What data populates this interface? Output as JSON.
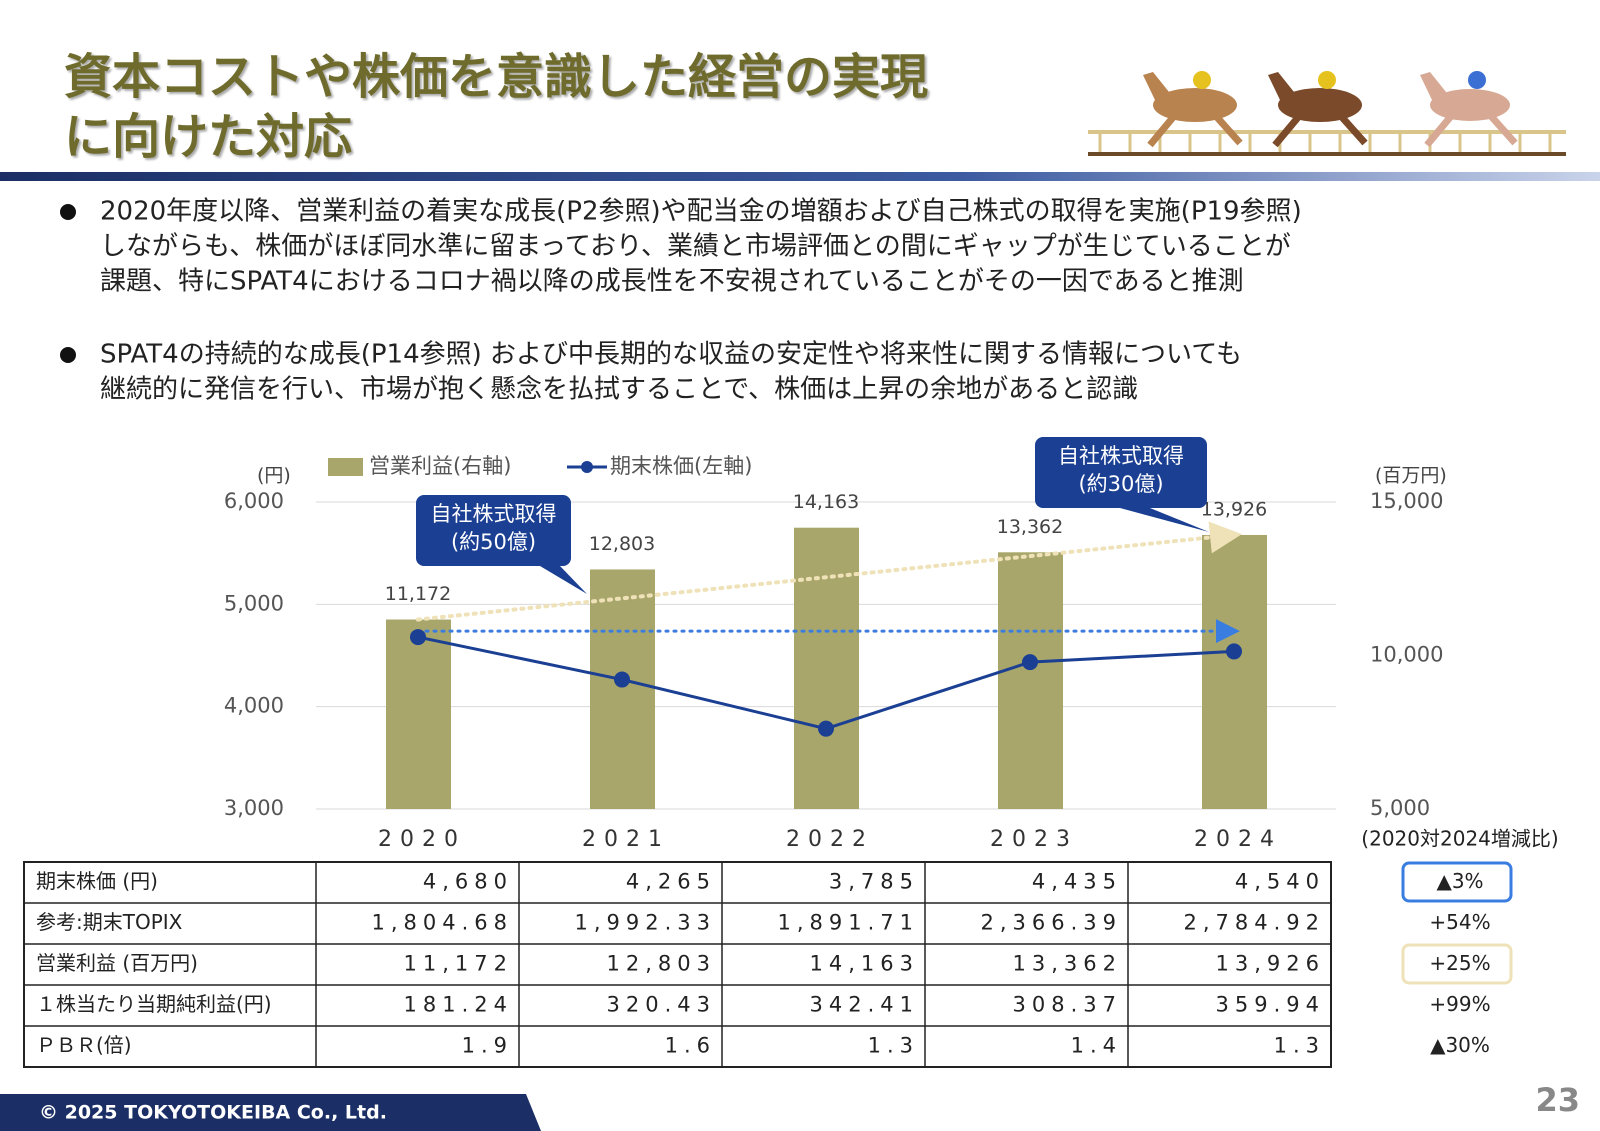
{
  "header": {
    "title_lines": [
      "資本コストや株価を意識した経営の実現",
      "に向けた対応"
    ]
  },
  "bullets": [
    [
      "2020年度以降、営業利益の着実な成長(P2参照)や配当金の増額および自己株式の取得を実施(P19参照)",
      "しながらも、株価がほぼ同水準に留まっており、業績と市場評価との間にギャップが生じていることが",
      "課題、特にSPAT4におけるコロナ禍以降の成長性を不安視されていることがその一因であると推測"
    ],
    [
      "SPAT4の持続的な成長(P14参照) および中長期的な収益の安定性や将来性に関する情報についても",
      "継続的に発信を行い、市場が抱く懸念を払拭することで、株価は上昇の余地があると認識"
    ]
  ],
  "chart_data": {
    "type": "combo",
    "categories": [
      "2020",
      "2021",
      "2022",
      "2023",
      "2024"
    ],
    "series": [
      {
        "name": "営業利益(右軸)",
        "color": "#a9a66b",
        "type": "bar",
        "axis": "y2",
        "values": [
          11172,
          12803,
          14163,
          13362,
          13926
        ],
        "value_labels": [
          "11,172",
          "12,803",
          "14,163",
          "13,362",
          "13,926"
        ]
      },
      {
        "name": "期末株価(左軸)",
        "color": "#1a3f93",
        "type": "line",
        "values": [
          4680,
          4265,
          3785,
          4435,
          4540
        ]
      }
    ],
    "ylim": [
      3000,
      6000
    ],
    "yticks": [
      {
        "value": 3000,
        "label": "3,000"
      },
      {
        "value": 4000,
        "label": "4,000"
      },
      {
        "value": 5000,
        "label": "5,000"
      },
      {
        "value": 6000,
        "label": "6,000"
      }
    ],
    "y2lim": [
      5000,
      15000
    ],
    "y2ticks": [
      {
        "value": 5000,
        "label": "5,000"
      },
      {
        "value": 10000,
        "label": "10,000"
      },
      {
        "value": 15000,
        "label": "15,000"
      }
    ],
    "ylabel": "(円)",
    "y2label": "(百万円)",
    "grid": true,
    "annotations": [
      {
        "lines": [
          "自社株式取得",
          "(約50億)"
        ]
      },
      {
        "lines": [
          "自社株式取得",
          "(約30億)"
        ]
      }
    ]
  },
  "table": {
    "change_header": "(2020対2024増減比)",
    "rows": [
      {
        "label": "期末株価 (円)",
        "cells": [
          "4,680",
          "4,265",
          "3,785",
          "4,435",
          "4,540"
        ],
        "change": "▲3%"
      },
      {
        "label": "参考:期末TOPIX",
        "cells": [
          "1,804.68",
          "1,992.33",
          "1,891.71",
          "2,366.39",
          "2,784.92"
        ],
        "change": "+54%"
      },
      {
        "label": "営業利益 (百万円)",
        "cells": [
          "11,172",
          "12,803",
          "14,163",
          "13,362",
          "13,926"
        ],
        "change": "+25%"
      },
      {
        "label": "１株当たり当期純利益(円)",
        "cells": [
          "181.24",
          "320.43",
          "342.41",
          "308.37",
          "359.94"
        ],
        "change": "+99%"
      },
      {
        "label": "ＰＢＲ(倍)",
        "cells": [
          "1.9",
          "1.6",
          "1.3",
          "1.4",
          "1.3"
        ],
        "change": "▲30%"
      }
    ]
  },
  "footer": {
    "copyright": "© 2025 TOKYOTOKEIBA Co., Ltd.",
    "page": "23"
  }
}
